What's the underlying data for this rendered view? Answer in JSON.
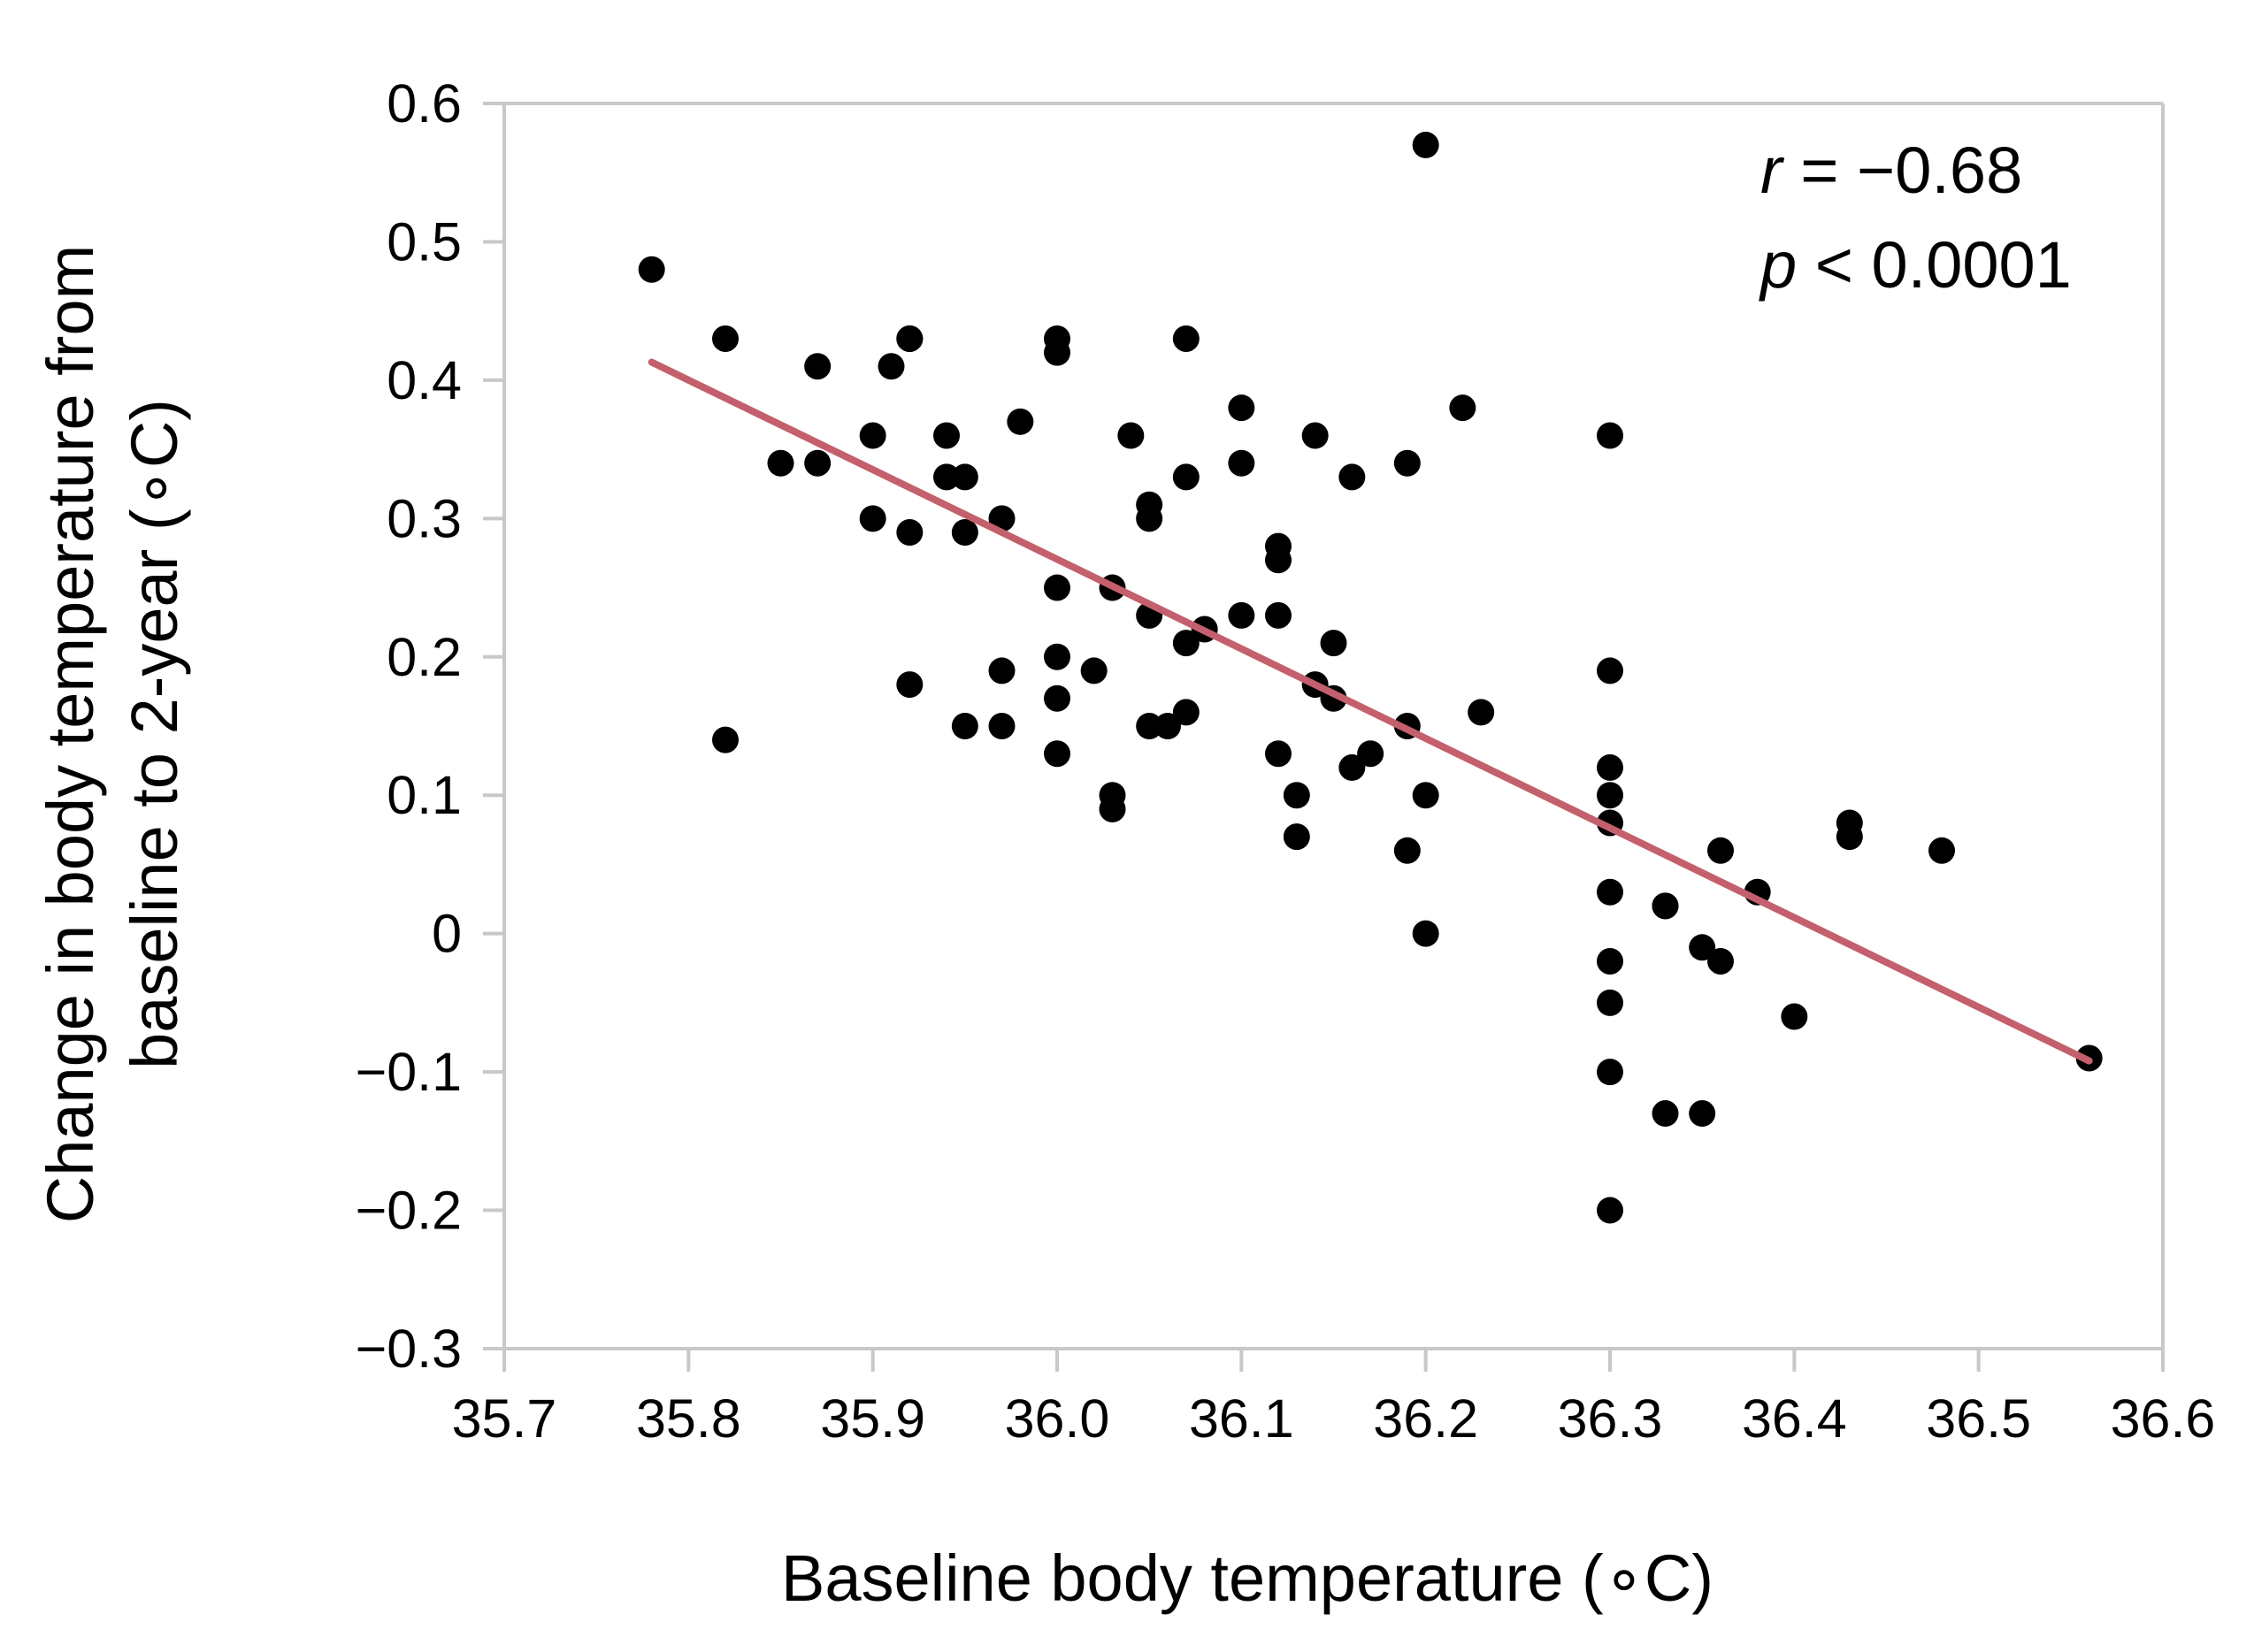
{
  "chart_data": {
    "type": "scatter",
    "xlabel": "Baseline body temperature  (∘C)",
    "ylabel_line1": "Change in body temperature from",
    "ylabel_line2": "baseline to 2-year (∘C)",
    "xlim": [
      35.7,
      36.6
    ],
    "ylim": [
      -0.3,
      0.6
    ],
    "x_ticks": [
      35.7,
      35.8,
      35.9,
      36.0,
      36.1,
      36.2,
      36.3,
      36.4,
      36.5,
      36.6
    ],
    "x_tick_labels": [
      "35.7",
      "35.8",
      "35.9",
      "36.0",
      "36.1",
      "36.2",
      "36.3",
      "36.4",
      "36.5",
      "36.6"
    ],
    "y_ticks": [
      -0.3,
      -0.2,
      -0.1,
      0,
      0.1,
      0.2,
      0.3,
      0.4,
      0.5,
      0.6
    ],
    "y_tick_labels": [
      "−0.3",
      "−0.2",
      "−0.1",
      "0",
      "0.1",
      "0.2",
      "0.3",
      "0.4",
      "0.5",
      "0.6"
    ],
    "grid": false,
    "annotation": {
      "r_symbol": "r",
      "r_value": " = −0.68",
      "p_symbol": "p",
      "p_value": " < 0.0001"
    },
    "series": [
      {
        "name": "observations",
        "color": "#000000",
        "points": [
          [
            35.78,
            0.48
          ],
          [
            35.82,
            0.14
          ],
          [
            35.82,
            0.43
          ],
          [
            35.85,
            0.34
          ],
          [
            35.87,
            0.34
          ],
          [
            35.87,
            0.41
          ],
          [
            35.9,
            0.36
          ],
          [
            35.9,
            0.3
          ],
          [
            35.91,
            0.41
          ],
          [
            35.92,
            0.43
          ],
          [
            35.92,
            0.43
          ],
          [
            35.92,
            0.29
          ],
          [
            35.92,
            0.18
          ],
          [
            35.94,
            0.36
          ],
          [
            35.94,
            0.33
          ],
          [
            35.95,
            0.33
          ],
          [
            35.95,
            0.29
          ],
          [
            35.95,
            0.15
          ],
          [
            35.97,
            0.3
          ],
          [
            35.97,
            0.19
          ],
          [
            35.97,
            0.15
          ],
          [
            35.98,
            0.37
          ],
          [
            36.0,
            0.43
          ],
          [
            36.0,
            0.42
          ],
          [
            36.0,
            0.25
          ],
          [
            36.0,
            0.2
          ],
          [
            36.0,
            0.17
          ],
          [
            36.0,
            0.13
          ],
          [
            36.02,
            0.19
          ],
          [
            36.03,
            0.25
          ],
          [
            36.03,
            0.1
          ],
          [
            36.03,
            0.09
          ],
          [
            36.04,
            0.36
          ],
          [
            36.05,
            0.31
          ],
          [
            36.05,
            0.3
          ],
          [
            36.05,
            0.23
          ],
          [
            36.05,
            0.15
          ],
          [
            36.06,
            0.15
          ],
          [
            36.07,
            0.43
          ],
          [
            36.07,
            0.21
          ],
          [
            36.07,
            0.33
          ],
          [
            36.07,
            0.16
          ],
          [
            36.08,
            0.22
          ],
          [
            36.1,
            0.38
          ],
          [
            36.1,
            0.34
          ],
          [
            36.1,
            0.23
          ],
          [
            36.12,
            0.28
          ],
          [
            36.12,
            0.27
          ],
          [
            36.12,
            0.23
          ],
          [
            36.12,
            0.13
          ],
          [
            36.13,
            0.1
          ],
          [
            36.13,
            0.07
          ],
          [
            36.14,
            0.36
          ],
          [
            36.14,
            0.18
          ],
          [
            36.15,
            0.21
          ],
          [
            36.15,
            0.17
          ],
          [
            36.16,
            0.33
          ],
          [
            36.16,
            0.12
          ],
          [
            36.17,
            0.13
          ],
          [
            36.19,
            0.34
          ],
          [
            36.19,
            0.15
          ],
          [
            36.19,
            0.06
          ],
          [
            36.2,
            0.57
          ],
          [
            36.2,
            0.1
          ],
          [
            36.2,
            0.0
          ],
          [
            36.22,
            0.38
          ],
          [
            36.23,
            0.16
          ],
          [
            36.3,
            0.36
          ],
          [
            36.3,
            0.19
          ],
          [
            36.3,
            0.12
          ],
          [
            36.3,
            0.1
          ],
          [
            36.3,
            0.08
          ],
          [
            36.3,
            0.03
          ],
          [
            36.3,
            -0.02
          ],
          [
            36.3,
            -0.05
          ],
          [
            36.3,
            -0.1
          ],
          [
            36.3,
            -0.2
          ],
          [
            36.33,
            0.02
          ],
          [
            36.33,
            0.02
          ],
          [
            36.33,
            -0.13
          ],
          [
            36.35,
            -0.01
          ],
          [
            36.35,
            -0.13
          ],
          [
            36.36,
            0.06
          ],
          [
            36.36,
            -0.02
          ],
          [
            36.38,
            0.03
          ],
          [
            36.4,
            -0.06
          ],
          [
            36.43,
            0.08
          ],
          [
            36.43,
            0.07
          ],
          [
            36.48,
            0.06
          ],
          [
            36.56,
            -0.09
          ]
        ]
      }
    ],
    "regression_line": {
      "color": "#c4606c",
      "x": [
        35.78,
        36.56
      ],
      "y": [
        0.413,
        -0.092
      ]
    }
  }
}
